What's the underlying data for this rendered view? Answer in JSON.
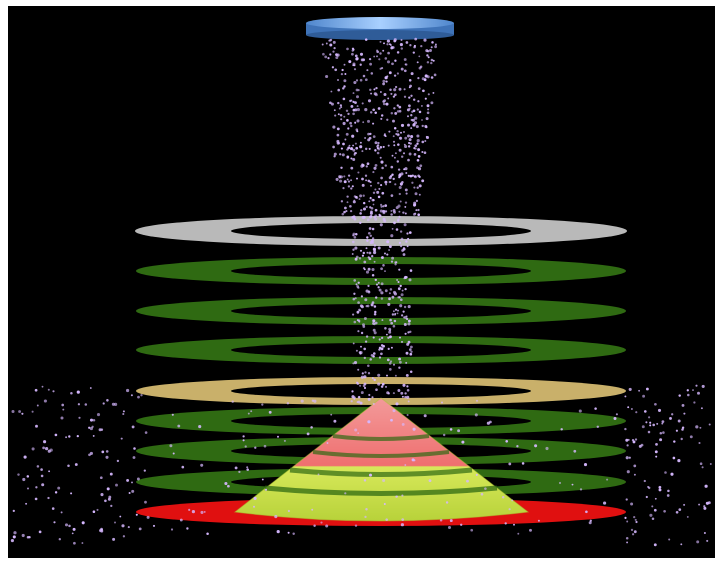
{
  "scene": {
    "colors": {
      "frame": "#ffffff",
      "background": "#000000",
      "source_disk_top": "#7fb0e8",
      "source_disk_side": "#3f73b8",
      "ring_top": "#b9b9b9",
      "ring_green": "#2f6a12",
      "ring_green_light": "#4c8a1f",
      "ring_tan": "#c9b06a",
      "base_disk": "#e01010",
      "cone_pink": "#f07a7a",
      "cone_yellow": "#c9e04a",
      "particle": "#d6b8ff"
    },
    "ring_stack": [
      {
        "name": "top-gray-ring",
        "kind": "gray"
      },
      {
        "name": "green-ring-1",
        "kind": "green"
      },
      {
        "name": "green-ring-2",
        "kind": "green"
      },
      {
        "name": "green-ring-3",
        "kind": "green"
      },
      {
        "name": "tan-ring",
        "kind": "tan"
      },
      {
        "name": "green-ring-4",
        "kind": "green"
      },
      {
        "name": "green-ring-5",
        "kind": "green"
      },
      {
        "name": "green-ring-6",
        "kind": "green"
      },
      {
        "name": "red-base-disk",
        "kind": "red"
      }
    ],
    "has_source_disk": true,
    "has_cone_pile": true,
    "has_falling_particles": true
  }
}
